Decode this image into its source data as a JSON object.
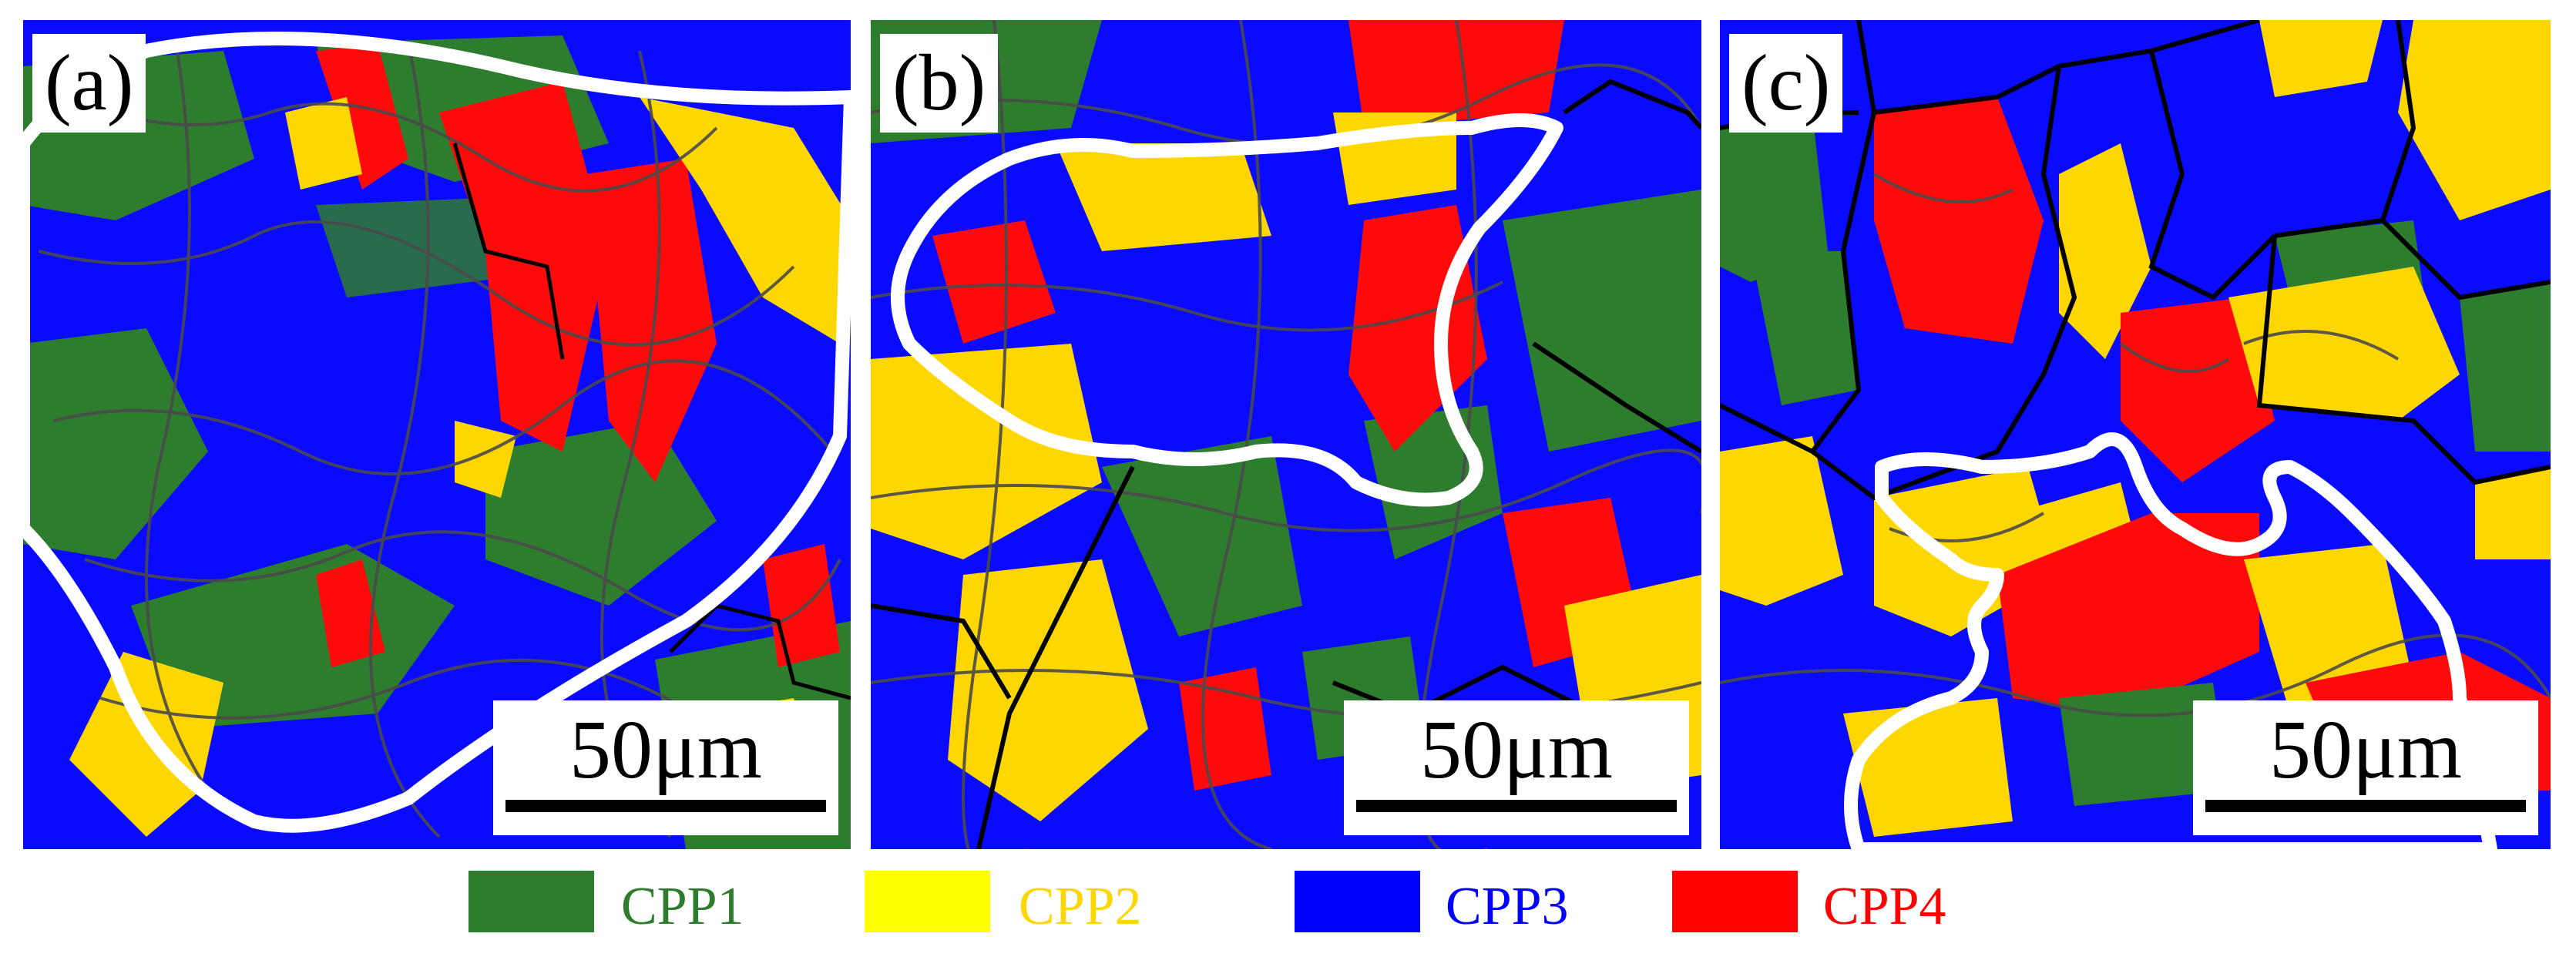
{
  "panels": [
    {
      "label": "(a)",
      "scale": "50μm"
    },
    {
      "label": "(b)",
      "scale": "50μm"
    },
    {
      "label": "(c)",
      "scale": "50μm"
    }
  ],
  "legend": [
    {
      "name": "CPP1",
      "color": "#2e7d2e"
    },
    {
      "name": "CPP2",
      "color": "#ffff00"
    },
    {
      "name": "CPP3",
      "color": "#0000ff"
    },
    {
      "name": "CPP4",
      "color": "#ff0000"
    }
  ],
  "colors": {
    "cpp1": "#2e7d2e",
    "cpp2": "#ffd700",
    "cpp3": "#0a0aff",
    "cpp4": "#ff0a0a",
    "outline": "#ffffff",
    "boundary": "#000000",
    "subboundary": "#4a4a4a"
  }
}
